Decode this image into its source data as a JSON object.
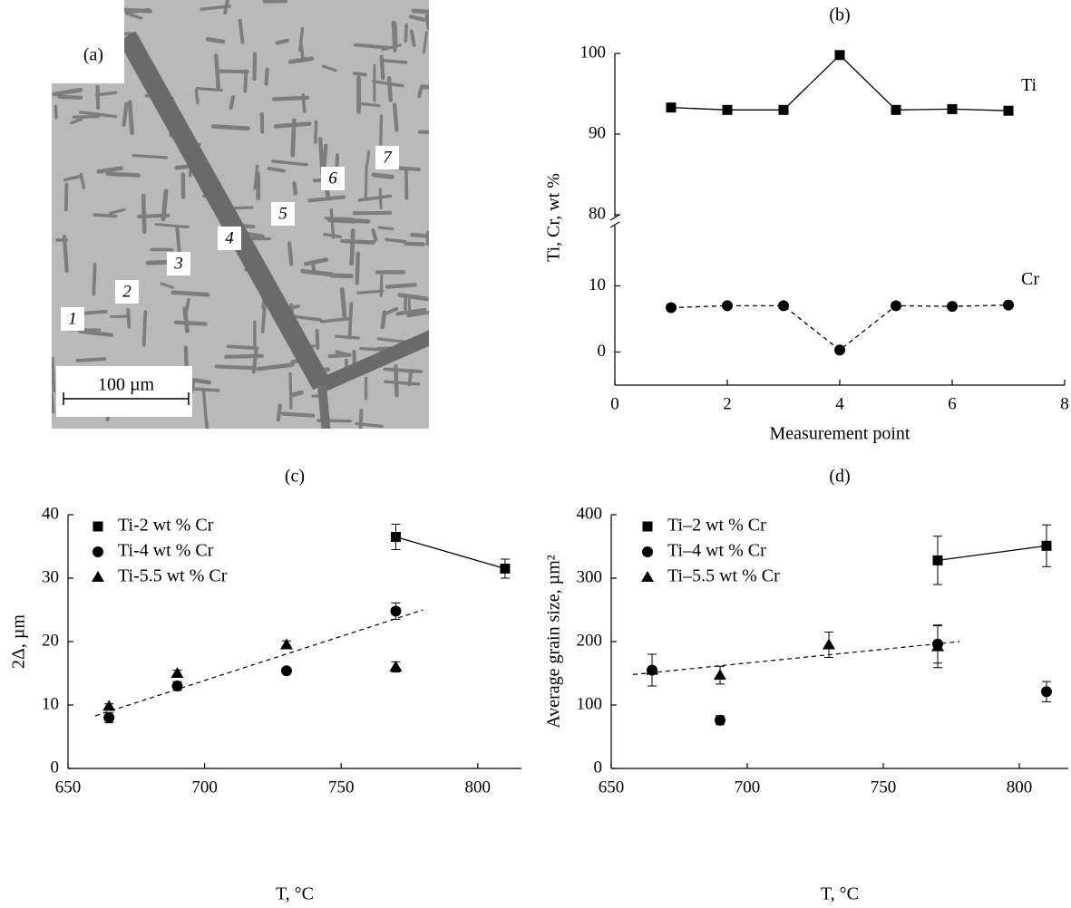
{
  "micrograph": {
    "panel_label": "(a)",
    "point_labels": [
      "1",
      "2",
      "3",
      "4",
      "5",
      "6",
      "7"
    ],
    "scale_bar": "100 µm"
  },
  "chart_data": [
    {
      "type": "line",
      "title": "(b)",
      "x_label": "Measurement point",
      "y_label": "Ti, Cr, wt %",
      "x": [
        1,
        2,
        3,
        4,
        5,
        6,
        7
      ],
      "series": [
        {
          "name": "Ti",
          "color": "#000000",
          "marker": "square",
          "linestyle": "solid",
          "values": [
            93.3,
            93.0,
            93.0,
            99.8,
            93.0,
            93.1,
            92.9
          ]
        },
        {
          "name": "Cr",
          "color": "#000000",
          "marker": "circle",
          "linestyle": "dashed",
          "values": [
            6.7,
            7.0,
            7.0,
            0.3,
            7.0,
            6.9,
            7.1
          ]
        }
      ],
      "xlim": [
        0,
        8
      ],
      "xticks": [
        0,
        2,
        4,
        6,
        8
      ],
      "ylim": [
        -5,
        100
      ],
      "ybreak": [
        18,
        80
      ],
      "yticks": [
        0,
        10,
        80,
        90,
        100
      ]
    },
    {
      "type": "scatter",
      "title": "(c)",
      "x_label": "T, °C",
      "y_label": "2Δ, µm",
      "legend": "upper left",
      "series": [
        {
          "name": "Ti-2 wt % Cr",
          "color": "#000000",
          "marker": "square",
          "connect": true,
          "x": [
            770,
            810
          ],
          "values": [
            36.5,
            31.5
          ],
          "errors": [
            2,
            1.5
          ]
        },
        {
          "name": "Ti-4 wt % Cr",
          "color": "#000000",
          "marker": "circle",
          "x": [
            665,
            690,
            730,
            770
          ],
          "values": [
            8,
            13,
            15.4,
            24.8
          ],
          "errors": [
            0.8,
            0.7,
            0.4,
            1.3
          ]
        },
        {
          "name": "Ti-5.5 wt % Cr",
          "color": "#000000",
          "marker": "triangle",
          "x": [
            665,
            690,
            730,
            770
          ],
          "values": [
            9.8,
            15,
            19.5,
            16
          ],
          "errors": [
            0.4,
            0.5,
            0.6,
            0.8
          ]
        }
      ],
      "fit": {
        "x": [
          660,
          780
        ],
        "y": [
          8.3,
          25
        ],
        "linestyle": "dashed"
      },
      "xlim": [
        650,
        816
      ],
      "xticks": [
        650,
        700,
        750,
        800
      ],
      "ylim": [
        0,
        40
      ],
      "yticks": [
        0,
        10,
        20,
        30,
        40
      ]
    },
    {
      "type": "scatter",
      "title": "(d)",
      "x_label": "T, °C",
      "y_label": "Average grain size, µm²",
      "legend": "upper left",
      "series": [
        {
          "name": "Ti–2 wt % Cr",
          "color": "#000000",
          "marker": "square",
          "connect": true,
          "x": [
            770,
            810
          ],
          "values": [
            328,
            351
          ],
          "errors": [
            38,
            33
          ]
        },
        {
          "name": "Ti–4 wt % Cr",
          "color": "#000000",
          "marker": "circle",
          "x": [
            665,
            690,
            770,
            810
          ],
          "values": [
            155,
            76,
            196,
            121
          ],
          "errors": [
            25,
            7,
            30,
            16
          ]
        },
        {
          "name": "Ti–5.5 wt % Cr",
          "color": "#000000",
          "marker": "triangle",
          "x": [
            665,
            690,
            730,
            770
          ],
          "values": [
            155,
            147,
            195,
            192
          ],
          "errors": [
            25,
            14,
            20,
            33
          ]
        }
      ],
      "fit": {
        "x": [
          658,
          778
        ],
        "y": [
          148,
          200
        ],
        "linestyle": "dashed"
      },
      "xlim": [
        650,
        818
      ],
      "xticks": [
        650,
        700,
        750,
        800
      ],
      "ylim": [
        0,
        400
      ],
      "yticks": [
        0,
        100,
        200,
        300,
        400
      ]
    }
  ]
}
